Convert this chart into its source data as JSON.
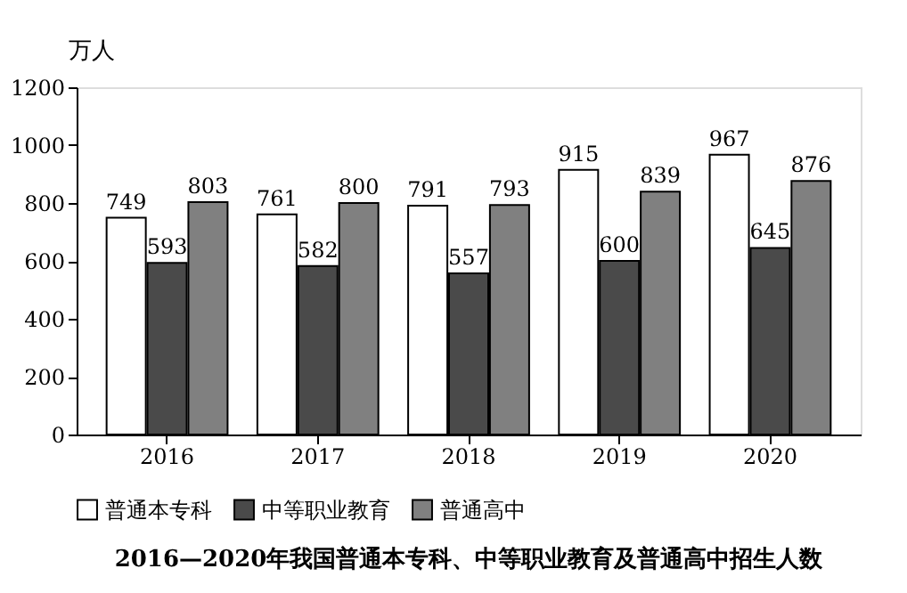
{
  "chart_data": {
    "type": "bar",
    "title": "2016—2020年我国普通本专科、中等职业教育及普通高中招生人数",
    "ylabel": "万人",
    "categories": [
      "2016",
      "2017",
      "2018",
      "2019",
      "2020"
    ],
    "series": [
      {
        "name": "普通本专科",
        "color": "#ffffff",
        "values": [
          749,
          761,
          791,
          915,
          967
        ]
      },
      {
        "name": "中等职业教育",
        "color": "#4a4a4a",
        "values": [
          593,
          582,
          557,
          600,
          645
        ]
      },
      {
        "name": "普通高中",
        "color": "#808080",
        "values": [
          803,
          800,
          793,
          839,
          876
        ]
      }
    ],
    "ylim": [
      0,
      1200
    ],
    "yticks": [
      0,
      200,
      400,
      600,
      800,
      1000,
      1200
    ],
    "grid": false,
    "legend": "bottom",
    "data_labels": true
  }
}
